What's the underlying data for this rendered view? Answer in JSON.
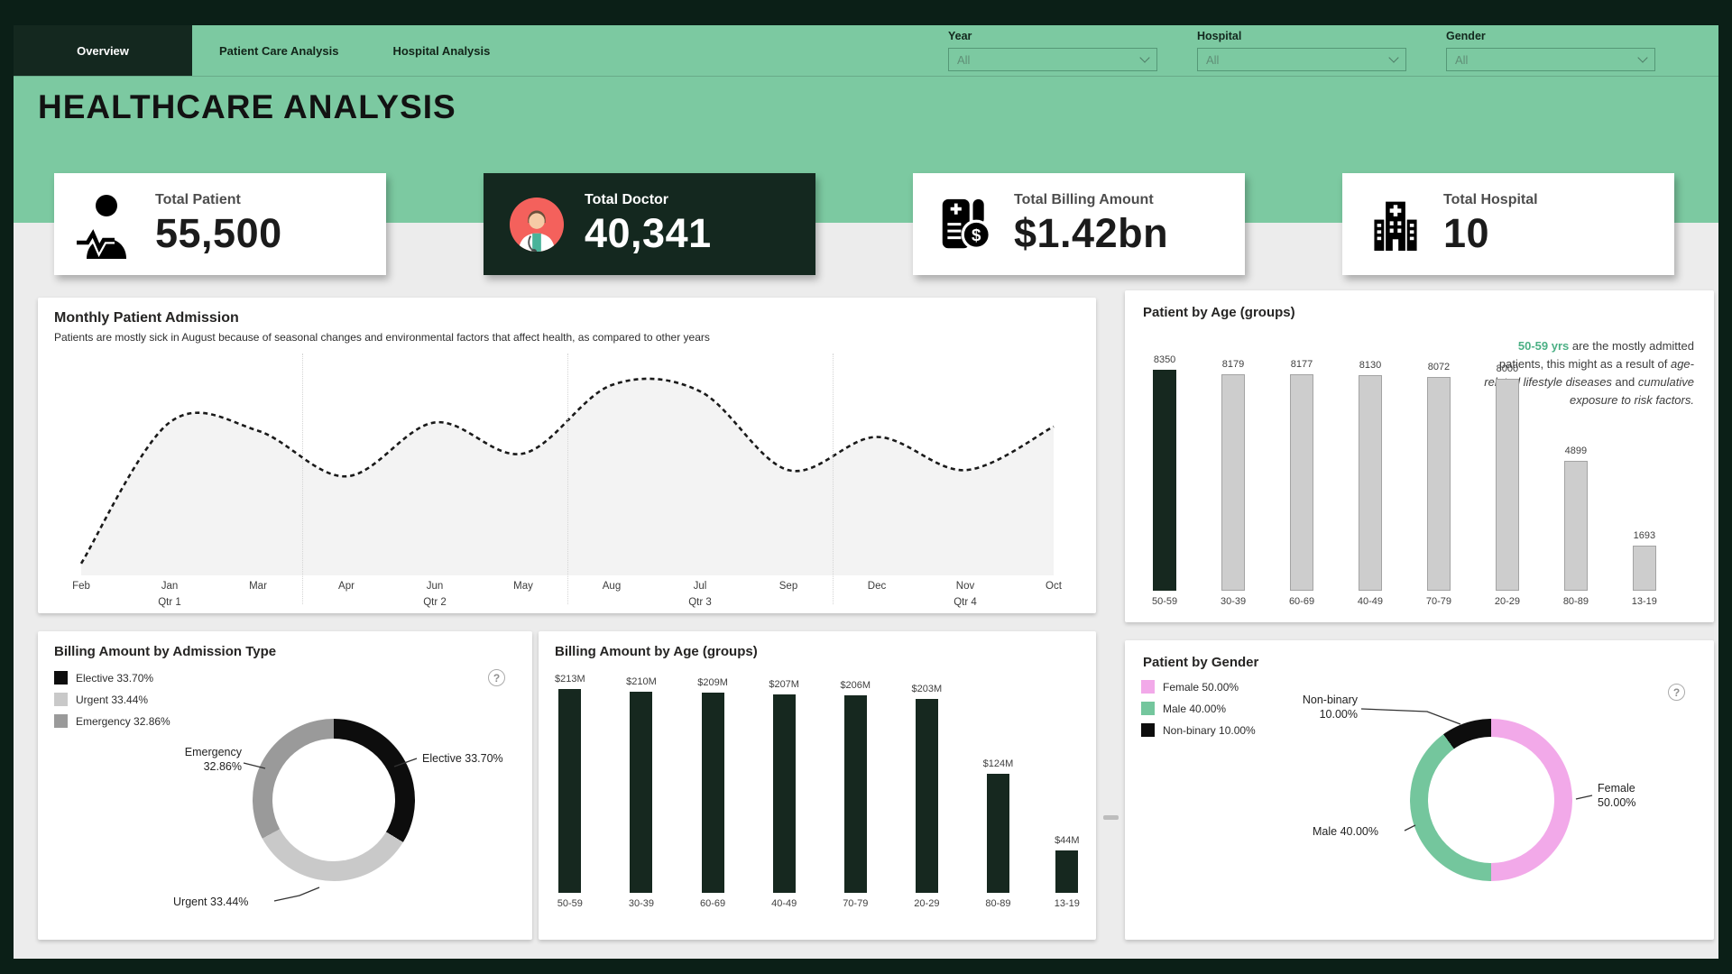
{
  "colors": {
    "frame": "#0b1f17",
    "accent_green": "#7cc9a1",
    "dark": "#14281f",
    "bar_gray": "#cdcdcd",
    "bar_dark": "#16281f",
    "pink": "#f2a9e9",
    "male_green": "#74c69d",
    "annotation_green": "#4cb085"
  },
  "icons": {
    "help": "?"
  },
  "nav": {
    "tabs": [
      {
        "label": "Overview",
        "active": true
      },
      {
        "label": "Patient Care Analysis",
        "active": false
      },
      {
        "label": "Hospital Analysis",
        "active": false
      }
    ],
    "filters": [
      {
        "label": "Year",
        "value": "All"
      },
      {
        "label": "Hospital",
        "value": "All"
      },
      {
        "label": "Gender",
        "value": "All"
      }
    ]
  },
  "header": {
    "title": "HEALTHCARE ANALYSIS"
  },
  "kpis": [
    {
      "label": "Total Patient",
      "value": "55,500",
      "icon": "patient-icon",
      "variant": "light"
    },
    {
      "label": "Total Doctor",
      "value": "40,341",
      "icon": "doctor-icon",
      "variant": "dark"
    },
    {
      "label": "Total Billing Amount",
      "value": "$1.42bn",
      "icon": "billing-receipt-icon",
      "variant": "light"
    },
    {
      "label": "Total Hospital",
      "value": "10",
      "icon": "hospital-building-icon",
      "variant": "light"
    }
  ],
  "chart_data": [
    {
      "id": "monthly_patient_admission",
      "type": "area",
      "title": "Monthly Patient Admission",
      "subtitle": "Patients are mostly sick in August because of seasonal changes and environmental factors that affect health, as compared to other years",
      "x": [
        "Feb",
        "Jan",
        "Mar",
        "Apr",
        "Jun",
        "May",
        "Aug",
        "Jul",
        "Sep",
        "Dec",
        "Nov",
        "Oct"
      ],
      "quarter_labels": [
        {
          "text": "Qtr 1",
          "month_index": 1
        },
        {
          "text": "Qtr 2",
          "month_index": 4
        },
        {
          "text": "Qtr 3",
          "month_index": 7
        },
        {
          "text": "Qtr 4",
          "month_index": 10
        }
      ],
      "values": [
        4,
        72,
        68,
        46,
        72,
        57,
        90,
        87,
        49,
        65,
        49,
        70
      ],
      "ylim": [
        0,
        100
      ],
      "line_style": "dashed",
      "filled": true,
      "grid": false
    },
    {
      "id": "patient_by_age",
      "type": "bar",
      "title": "Patient by Age (groups)",
      "categories": [
        "50-59",
        "30-39",
        "60-69",
        "40-49",
        "70-79",
        "20-29",
        "80-89",
        "13-19"
      ],
      "values": [
        8350,
        8179,
        8177,
        8130,
        8072,
        8000,
        4899,
        1693
      ],
      "highlight_category": "50-59",
      "annotation": {
        "lead": "50-59 yrs",
        "t1": " are the mostly admitted patients, this might as a result of ",
        "i1": "age-related lifestyle diseases",
        "t2": " and ",
        "i2": "cumulative exposure to risk factors",
        "t3": "."
      }
    },
    {
      "id": "billing_amount_by_admission_type",
      "type": "pie",
      "title": "Billing Amount by Admission Type",
      "legend_position": "left",
      "slices": [
        {
          "label": "Elective",
          "value": 33.7,
          "pct_label": "33.70%",
          "color": "#0d0d0d"
        },
        {
          "label": "Urgent",
          "value": 33.44,
          "pct_label": "33.44%",
          "color": "#c9c9c9"
        },
        {
          "label": "Emergency",
          "value": 32.86,
          "pct_label": "32.86%",
          "color": "#9a9a9a"
        }
      ]
    },
    {
      "id": "billing_amount_by_age",
      "type": "bar",
      "title": "Billing Amount by Age (groups)",
      "categories": [
        "50-59",
        "30-39",
        "60-69",
        "40-49",
        "70-79",
        "20-29",
        "80-89",
        "13-19"
      ],
      "values": [
        213,
        210,
        209,
        207,
        206,
        203,
        124,
        44
      ],
      "value_labels": [
        "$213M",
        "$210M",
        "$209M",
        "$207M",
        "$206M",
        "$203M",
        "$124M",
        "$44M"
      ],
      "unit": "USD millions"
    },
    {
      "id": "patient_by_gender",
      "type": "pie",
      "title": "Patient by Gender",
      "legend_position": "left",
      "slices": [
        {
          "label": "Female",
          "value": 50.0,
          "pct_label": "50.00%",
          "color": "#f2a9e9"
        },
        {
          "label": "Male",
          "value": 40.0,
          "pct_label": "40.00%",
          "color": "#74c69d"
        },
        {
          "label": "Non-binary",
          "value": 10.0,
          "pct_label": "10.00%",
          "color": "#0d0d0d"
        }
      ]
    }
  ]
}
